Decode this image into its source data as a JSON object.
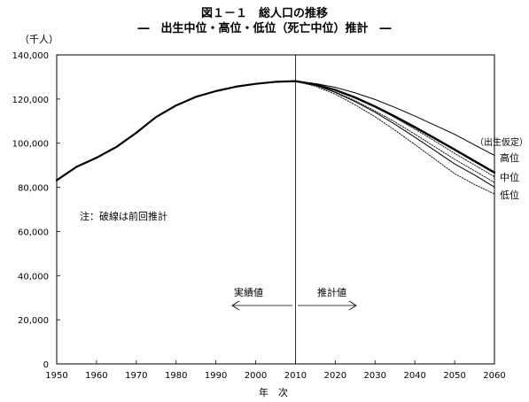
{
  "chart_data": {
    "type": "line",
    "title": "図１－１　総人口の推移",
    "subtitle": "―　出生中位・高位・低位（死亡中位）推計　―",
    "ylabel": "（千人）",
    "xlabel": "年　次",
    "xlim": [
      1950,
      2060
    ],
    "ylim": [
      0,
      140000
    ],
    "x_ticks": [
      "1950",
      "1960",
      "1970",
      "1980",
      "1990",
      "2000",
      "2010",
      "2020",
      "2030",
      "2040",
      "2050",
      "2060"
    ],
    "y_ticks": [
      "0",
      "20,000",
      "40,000",
      "60,000",
      "80,000",
      "100,000",
      "120,000",
      "140,000"
    ],
    "x_tick_values": [
      1950,
      1960,
      1970,
      1980,
      1990,
      2000,
      2010,
      2020,
      2030,
      2040,
      2050,
      2060
    ],
    "y_tick_values": [
      0,
      20000,
      40000,
      60000,
      80000,
      100000,
      120000,
      140000
    ],
    "vline_x": 2010,
    "annotations": {
      "note": "注：破線は前回推計",
      "actual": "実績値",
      "projected": "推計値",
      "assumption": "（出生仮定）",
      "high": "高位",
      "medium": "中位",
      "low": "低位"
    },
    "series": [
      {
        "style": "solid",
        "x": [
          1950,
          1955,
          1960,
          1965,
          1970,
          1972,
          1975,
          1980,
          1985,
          1990,
          1995,
          2000,
          2005,
          2010
        ],
        "y": [
          83200,
          89300,
          93400,
          98300,
          104700,
          107600,
          111900,
          117100,
          121000,
          123600,
          125600,
          126900,
          127800,
          128100
        ]
      },
      {
        "style": "solid-medium",
        "x": [
          2010,
          2015,
          2020,
          2025,
          2030,
          2035,
          2040,
          2045,
          2050,
          2055,
          2060
        ],
        "y": [
          128100,
          126600,
          124100,
          120700,
          116600,
          112100,
          107300,
          102200,
          97100,
          91900,
          86700
        ]
      },
      {
        "style": "solid-thin",
        "x": [
          2010,
          2015,
          2020,
          2025,
          2030,
          2035,
          2040,
          2045,
          2050,
          2055,
          2060
        ],
        "y": [
          128100,
          127000,
          125300,
          122800,
          119800,
          116200,
          112300,
          108200,
          104000,
          99200,
          94500
        ]
      },
      {
        "style": "solid-thin",
        "x": [
          2010,
          2015,
          2020,
          2025,
          2030,
          2035,
          2040,
          2045,
          2050,
          2055,
          2060
        ],
        "y": [
          128100,
          126300,
          123000,
          118800,
          114000,
          108600,
          102700,
          96700,
          90600,
          85600,
          80100
        ]
      },
      {
        "style": "dotted",
        "x": [
          2010,
          2015,
          2020,
          2025,
          2030,
          2035,
          2040,
          2045,
          2050,
          2055,
          2060
        ],
        "y": [
          128100,
          126200,
          123200,
          119300,
          114600,
          109600,
          104100,
          98400,
          92700,
          87500,
          82200
        ]
      },
      {
        "style": "dotted",
        "x": [
          2010,
          2015,
          2020,
          2025,
          2030,
          2035,
          2040,
          2045,
          2050,
          2055,
          2060
        ],
        "y": [
          128100,
          126600,
          124100,
          120700,
          116400,
          111600,
          106400,
          101000,
          95400,
          90100,
          84800
        ]
      },
      {
        "style": "dotted",
        "x": [
          2010,
          2015,
          2020,
          2025,
          2030,
          2035,
          2040,
          2045,
          2050,
          2055,
          2060
        ],
        "y": [
          128100,
          125800,
          122200,
          117400,
          112000,
          105900,
          99400,
          92800,
          86200,
          81300,
          77000
        ]
      }
    ]
  }
}
